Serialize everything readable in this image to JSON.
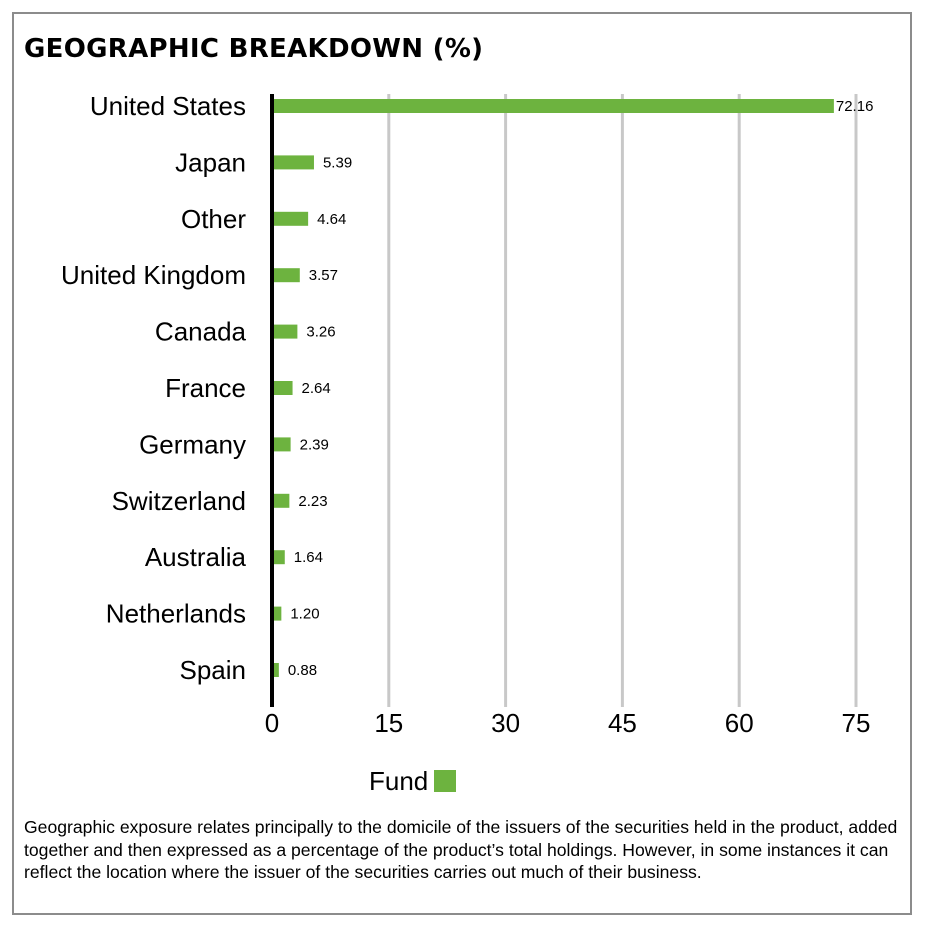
{
  "title": "GEOGRAPHIC BREAKDOWN (%)",
  "legend": {
    "label": "Fund",
    "color": "#6db33f"
  },
  "footnote": "Geographic exposure relates principally to the domicile of the issuers of the securities held in the product, added together and then expressed as a percentage of the product’s total holdings. However, in some instances it can reflect the location where the issuer of the securities carries out much of their business.",
  "chart_data": {
    "type": "bar",
    "orientation": "horizontal",
    "title": "GEOGRAPHIC BREAKDOWN (%)",
    "categories": [
      "United States",
      "Japan",
      "Other",
      "United Kingdom",
      "Canada",
      "France",
      "Germany",
      "Switzerland",
      "Australia",
      "Netherlands",
      "Spain"
    ],
    "series": [
      {
        "name": "Fund",
        "color": "#6db33f",
        "values": [
          72.16,
          5.39,
          4.64,
          3.57,
          3.26,
          2.64,
          2.39,
          2.23,
          1.64,
          1.2,
          0.88
        ]
      }
    ],
    "data_labels": [
      "72.16",
      "5.39",
      "4.64",
      "3.57",
      "3.26",
      "2.64",
      "2.39",
      "2.23",
      "1.64",
      "1.20",
      "0.88"
    ],
    "xlim": [
      0,
      75
    ],
    "xticks": [
      0,
      15,
      30,
      45,
      60,
      75
    ],
    "xlabel": "",
    "ylabel": "",
    "grid": "vertical",
    "grid_color": "#c8c8c8",
    "legend_position": "bottom-center"
  }
}
